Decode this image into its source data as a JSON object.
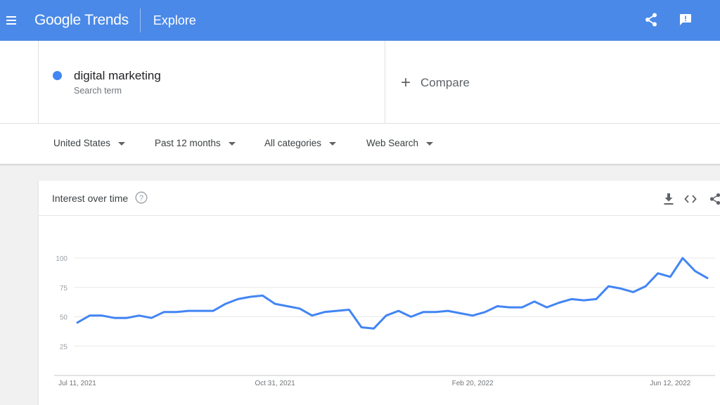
{
  "header": {
    "logo_text": "Google Trends",
    "section": "Explore",
    "icons": [
      "menu-icon",
      "share-icon",
      "feedback-icon"
    ],
    "accent_color": "#4a89e8"
  },
  "search": {
    "term": "digital marketing",
    "term_type": "Search term",
    "term_color": "#4285f4",
    "compare_label": "Compare"
  },
  "filters": {
    "region": "United States",
    "time_range": "Past 12 months",
    "category": "All categories",
    "search_type": "Web Search"
  },
  "card": {
    "title": "Interest over time",
    "icons": [
      "help-icon",
      "download-icon",
      "embed-icon",
      "share-icon"
    ]
  },
  "chart_data": {
    "type": "line",
    "title": "",
    "xlabel": "",
    "ylabel": "",
    "ylim": [
      0,
      100
    ],
    "yticks": [
      25,
      50,
      75,
      100
    ],
    "grid": true,
    "legend": "none",
    "x_tick_labels": [
      "Jul 11, 2021",
      "Oct 31, 2021",
      "Feb 20, 2022",
      "Jun 12, 2022"
    ],
    "x_tick_indices": [
      0,
      16,
      32,
      48
    ],
    "series": [
      {
        "color": "#4285f4",
        "values": [
          45,
          51,
          51,
          49,
          49,
          51,
          49,
          54,
          54,
          55,
          55,
          55,
          61,
          65,
          67,
          68,
          61,
          59,
          57,
          51,
          54,
          55,
          56,
          41,
          40,
          51,
          55,
          50,
          54,
          54,
          55,
          53,
          51,
          54,
          59,
          58,
          58,
          63,
          58,
          62,
          65,
          64,
          65,
          76,
          74,
          71,
          76,
          87,
          84,
          100,
          89,
          83
        ]
      }
    ]
  }
}
